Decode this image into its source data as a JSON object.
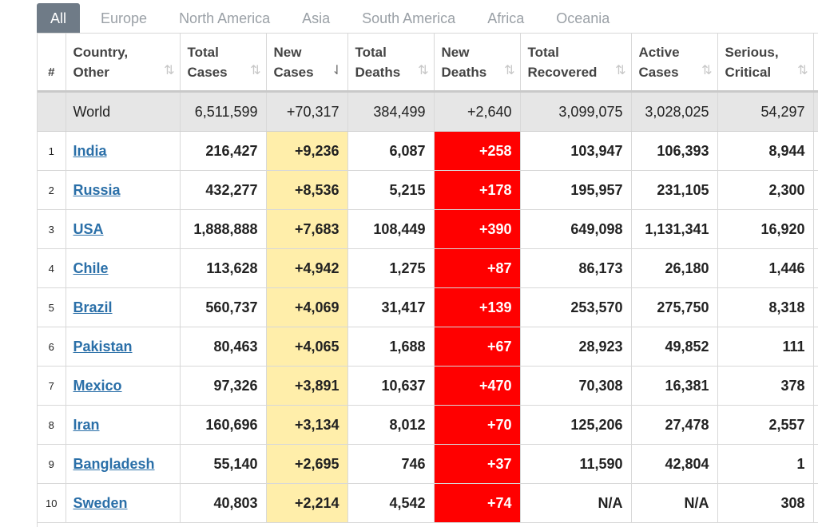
{
  "tabs": [
    "All",
    "Europe",
    "North America",
    "Asia",
    "South America",
    "Africa",
    "Oceania"
  ],
  "headers": {
    "index": "#",
    "country": [
      "Country,",
      "Other"
    ],
    "total_cases": [
      "Total",
      "Cases"
    ],
    "new_cases": [
      "New",
      "Cases"
    ],
    "total_deaths": [
      "Total",
      "Deaths"
    ],
    "new_deaths": [
      "New",
      "Deaths"
    ],
    "total_recovered": [
      "Total",
      "Recovered"
    ],
    "active_cases": [
      "Active",
      "Cases"
    ],
    "serious_critical": [
      "Serious,",
      "Critical"
    ]
  },
  "sort_icon": "⇅",
  "sort_active_icon": "⇃",
  "world": {
    "country": "World",
    "total_cases": "6,511,599",
    "new_cases": "+70,317",
    "total_deaths": "384,499",
    "new_deaths": "+2,640",
    "total_recovered": "3,099,075",
    "active_cases": "3,028,025",
    "serious_critical": "54,297"
  },
  "rows": [
    {
      "index": "1",
      "country": "India",
      "total_cases": "216,427",
      "new_cases": "+9,236",
      "total_deaths": "6,087",
      "new_deaths": "+258",
      "total_recovered": "103,947",
      "active_cases": "106,393",
      "serious_critical": "8,944"
    },
    {
      "index": "2",
      "country": "Russia",
      "total_cases": "432,277",
      "new_cases": "+8,536",
      "total_deaths": "5,215",
      "new_deaths": "+178",
      "total_recovered": "195,957",
      "active_cases": "231,105",
      "serious_critical": "2,300"
    },
    {
      "index": "3",
      "country": "USA",
      "total_cases": "1,888,888",
      "new_cases": "+7,683",
      "total_deaths": "108,449",
      "new_deaths": "+390",
      "total_recovered": "649,098",
      "active_cases": "1,131,341",
      "serious_critical": "16,920"
    },
    {
      "index": "4",
      "country": "Chile",
      "total_cases": "113,628",
      "new_cases": "+4,942",
      "total_deaths": "1,275",
      "new_deaths": "+87",
      "total_recovered": "86,173",
      "active_cases": "26,180",
      "serious_critical": "1,446"
    },
    {
      "index": "5",
      "country": "Brazil",
      "total_cases": "560,737",
      "new_cases": "+4,069",
      "total_deaths": "31,417",
      "new_deaths": "+139",
      "total_recovered": "253,570",
      "active_cases": "275,750",
      "serious_critical": "8,318"
    },
    {
      "index": "6",
      "country": "Pakistan",
      "total_cases": "80,463",
      "new_cases": "+4,065",
      "total_deaths": "1,688",
      "new_deaths": "+67",
      "total_recovered": "28,923",
      "active_cases": "49,852",
      "serious_critical": "111"
    },
    {
      "index": "7",
      "country": "Mexico",
      "total_cases": "97,326",
      "new_cases": "+3,891",
      "total_deaths": "10,637",
      "new_deaths": "+470",
      "total_recovered": "70,308",
      "active_cases": "16,381",
      "serious_critical": "378"
    },
    {
      "index": "8",
      "country": "Iran",
      "total_cases": "160,696",
      "new_cases": "+3,134",
      "total_deaths": "8,012",
      "new_deaths": "+70",
      "total_recovered": "125,206",
      "active_cases": "27,478",
      "serious_critical": "2,557"
    },
    {
      "index": "9",
      "country": "Bangladesh",
      "total_cases": "55,140",
      "new_cases": "+2,695",
      "total_deaths": "746",
      "new_deaths": "+37",
      "total_recovered": "11,590",
      "active_cases": "42,804",
      "serious_critical": "1"
    },
    {
      "index": "10",
      "country": "Sweden",
      "total_cases": "40,803",
      "new_cases": "+2,214",
      "total_deaths": "4,542",
      "new_deaths": "+74",
      "total_recovered": "N/A",
      "active_cases": "N/A",
      "serious_critical": "308"
    }
  ],
  "colors": {
    "tab_active_bg": "#6f7b87",
    "new_cases_bg": "#ffeeaa",
    "new_deaths_bg": "#ff0000",
    "world_row_bg": "#e6e6e6",
    "country_link": "#2a6fa8"
  }
}
